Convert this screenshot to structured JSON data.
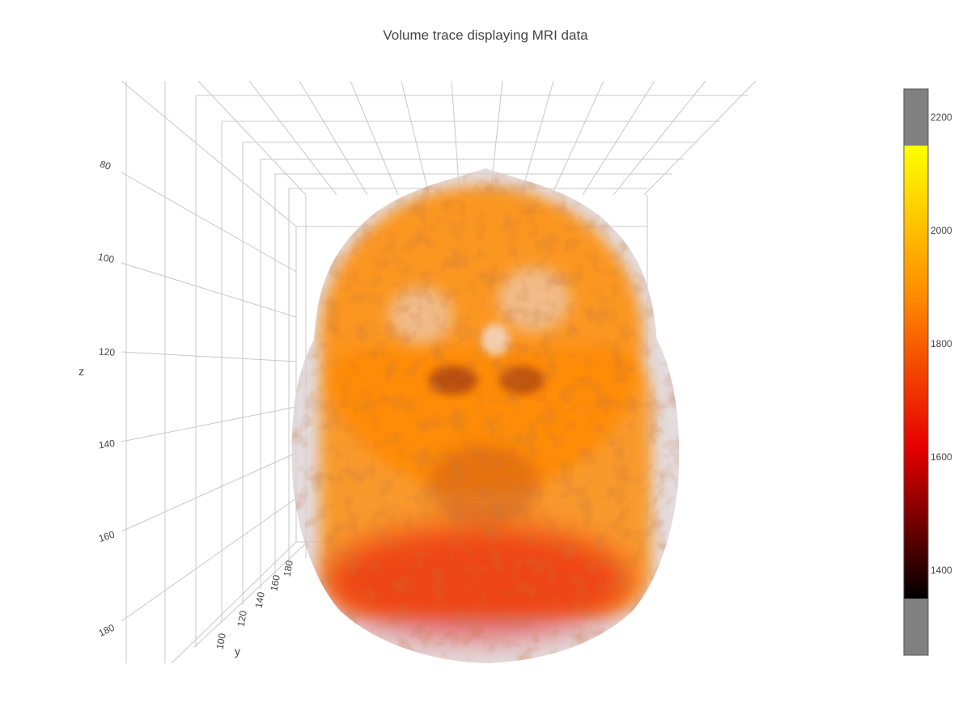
{
  "chart_data": {
    "type": "volume",
    "title": "Volume trace displaying MRI data",
    "axes": {
      "x": {
        "title": "",
        "ticks": []
      },
      "y": {
        "title": "y",
        "ticks": [
          "100",
          "120",
          "140",
          "160",
          "180"
        ]
      },
      "z": {
        "title": "z",
        "ticks": [
          "80",
          "100",
          "120",
          "140",
          "160",
          "180"
        ]
      }
    },
    "colorscale": {
      "name": "Hot",
      "colors": [
        "#000000",
        "#e60000",
        "#ff8a00",
        "#ffff00"
      ],
      "isomin": 1350,
      "isomax": 2150,
      "range": [
        1250,
        2250
      ],
      "ticks": [
        1400,
        1600,
        1800,
        2000,
        2200
      ],
      "out_of_range_color": "#808080"
    },
    "surface_count": 17
  }
}
